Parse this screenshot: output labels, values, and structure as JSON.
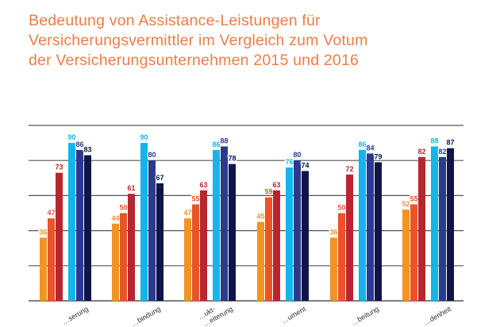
{
  "chart_data": {
    "type": "bar",
    "title_lines": [
      "Bedeutung von Assistance-Leistungen für",
      "Versicherungsvermittler im Vergleich zum Votum",
      "der Versicherungsunternehmen 2015 und 2016"
    ],
    "categories": [
      "…serung",
      "…bindung",
      "…ukt- …eiterung",
      "…ument",
      "…beitung",
      "…denheit"
    ],
    "series": [
      {
        "values": [
          36,
          44,
          47,
          45,
          36,
          52
        ],
        "color": "#f39322"
      },
      {
        "values": [
          47,
          50,
          55,
          59,
          50,
          55
        ],
        "color": "#ea5428"
      },
      {
        "values": [
          73,
          61,
          63,
          63,
          72,
          82
        ],
        "color": "#b9252f"
      },
      {
        "values": [
          90,
          90,
          86,
          76,
          86,
          88
        ],
        "color": "#13b5ea"
      },
      {
        "values": [
          86,
          80,
          88,
          80,
          84,
          82
        ],
        "color": "#2b3a8f"
      },
      {
        "values": [
          83,
          67,
          78,
          74,
          79,
          87
        ],
        "color": "#0f1449"
      }
    ],
    "label_colors": [
      "#f39322",
      "#ea5428",
      "#b9252f",
      "#13b5ea",
      "#2b3a8f",
      "#0f1449"
    ],
    "ylim": [
      0,
      100
    ],
    "gridlines": [
      0,
      20,
      40,
      60,
      80,
      100
    ],
    "grid": true,
    "legend": "none"
  }
}
